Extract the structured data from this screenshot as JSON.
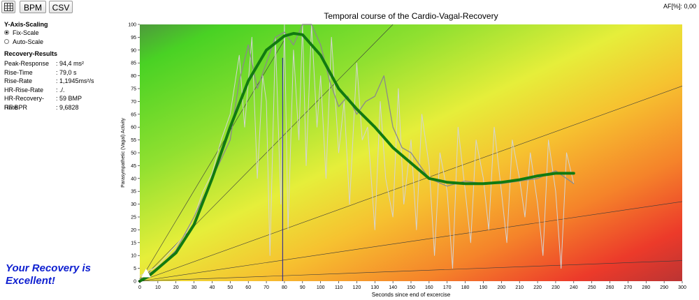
{
  "toolbar": {
    "grid_icon": "grid-icon",
    "bpm_label": "BPM",
    "csv_label": "CSV"
  },
  "af_readout": "AF[%]: 0,00",
  "scaling": {
    "title": "Y-Axis-Scaling",
    "options": [
      {
        "label": "Fix-Scale",
        "selected": true
      },
      {
        "label": "Auto-Scale",
        "selected": false
      }
    ]
  },
  "results": {
    "title": "Recovery-Results",
    "rows": [
      {
        "label": "Peak-Response",
        "value": ": 94,4 ms²"
      },
      {
        "label": "Rise-Time",
        "value": ": 79,0 s"
      },
      {
        "label": "Rise-Rate",
        "value": ": 1,1945ms²/s"
      },
      {
        "label": "HR-Rise-Rate",
        "value": ": ./."
      },
      {
        "label": "HR-Recovery-Rate",
        "value": ": 59 BMP"
      },
      {
        "label": "HF BPR",
        "value": ": 9,6828"
      }
    ]
  },
  "verdict": {
    "line1": "Your Recovery is",
    "line2": "Excellent!",
    "color": "#0e1fd0"
  },
  "colors": {
    "main_curve": "#117a11",
    "raw_curve": "#d4d4d4",
    "mid_curve": "#8a8a8a",
    "peak_marker": "#1a1aa0"
  },
  "chart_data": {
    "type": "line",
    "title": "Temporal course of the Cardio-Vagal-Recovery",
    "xlabel": "Seconds since end of excercise",
    "ylabel": "Parasympathetic (Vagal) Activity",
    "xlim": [
      0,
      300
    ],
    "ylim": [
      0,
      100
    ],
    "xticks": [
      0,
      10,
      20,
      30,
      40,
      50,
      60,
      70,
      80,
      90,
      100,
      110,
      120,
      130,
      140,
      150,
      160,
      170,
      180,
      190,
      200,
      210,
      220,
      230,
      240,
      250,
      260,
      270,
      280,
      290,
      300
    ],
    "yticks": [
      0,
      5,
      10,
      15,
      20,
      25,
      30,
      35,
      40,
      45,
      50,
      55,
      60,
      65,
      70,
      75,
      80,
      85,
      90,
      95,
      100
    ],
    "background": "gradient green (upper-left) to yellow/orange to red (lower-right)",
    "peak_marker_x": 79,
    "reference_lines": [
      {
        "from": [
          0,
          0
        ],
        "to": [
          300,
          76
        ]
      },
      {
        "from": [
          0,
          0
        ],
        "to": [
          300,
          31
        ]
      },
      {
        "from": [
          0,
          0
        ],
        "to": [
          140,
          100
        ]
      },
      {
        "from": [
          0,
          0
        ],
        "to": [
          80,
          94
        ]
      },
      {
        "from": [
          0,
          0
        ],
        "to": [
          300,
          8
        ]
      }
    ],
    "series": [
      {
        "role": "smoothed",
        "x": [
          0,
          5,
          10,
          20,
          30,
          40,
          50,
          60,
          70,
          80,
          85,
          90,
          100,
          110,
          120,
          130,
          140,
          150,
          160,
          170,
          180,
          190,
          200,
          210,
          220,
          230,
          240
        ],
        "y": [
          0,
          2,
          5,
          11,
          22,
          40,
          60,
          78,
          90,
          95.5,
          96.5,
          96,
          88,
          75,
          67,
          60,
          52,
          46,
          40,
          38.5,
          38,
          38,
          38.5,
          39.5,
          41,
          42,
          42
        ]
      },
      {
        "role": "moving-average",
        "x": [
          0,
          10,
          20,
          30,
          40,
          50,
          55,
          60,
          65,
          70,
          75,
          80,
          85,
          90,
          95,
          100,
          105,
          110,
          115,
          120,
          125,
          130,
          135,
          140,
          145,
          150,
          160,
          170,
          180,
          190,
          200,
          210,
          220,
          230,
          240
        ],
        "y": [
          1,
          5,
          12,
          25,
          40,
          55,
          78,
          92,
          75,
          85,
          95,
          97,
          92,
          100,
          100,
          92,
          78,
          68,
          72,
          65,
          70,
          72,
          80,
          60,
          52,
          50,
          40,
          37,
          39,
          38,
          38,
          39,
          40,
          43,
          38
        ]
      },
      {
        "role": "raw",
        "x": [
          0,
          5,
          10,
          15,
          20,
          25,
          30,
          35,
          40,
          45,
          50,
          55,
          58,
          62,
          65,
          68,
          70,
          72,
          75,
          78,
          80,
          82,
          85,
          88,
          90,
          92,
          95,
          98,
          100,
          103,
          106,
          110,
          113,
          116,
          120,
          123,
          126,
          130,
          133,
          136,
          140,
          143,
          146,
          150,
          153,
          156,
          160,
          163,
          166,
          170,
          173,
          176,
          180,
          183,
          186,
          190,
          193,
          196,
          200,
          203,
          206,
          210,
          213,
          216,
          220,
          223,
          226,
          230,
          233,
          236,
          240
        ],
        "y": [
          2,
          4,
          6,
          10,
          14,
          18,
          25,
          35,
          42,
          55,
          65,
          88,
          60,
          95,
          40,
          80,
          70,
          10,
          95,
          30,
          100,
          20,
          90,
          55,
          100,
          45,
          100,
          60,
          80,
          40,
          95,
          50,
          70,
          30,
          85,
          55,
          60,
          20,
          70,
          40,
          25,
          75,
          30,
          55,
          20,
          65,
          45,
          10,
          50,
          35,
          5,
          60,
          35,
          15,
          55,
          40,
          20,
          60,
          35,
          15,
          55,
          40,
          25,
          50,
          30,
          10,
          55,
          35,
          5,
          50,
          38
        ]
      }
    ]
  }
}
